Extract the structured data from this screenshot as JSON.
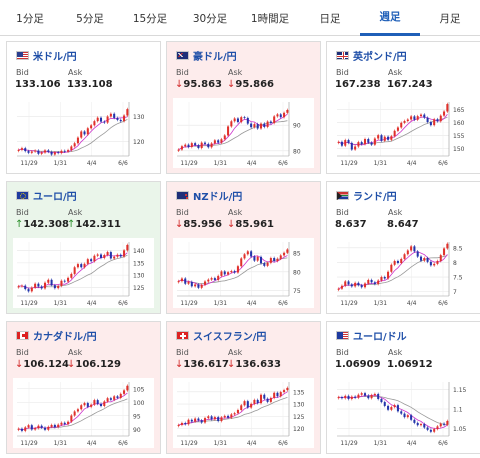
{
  "tabs": [
    {
      "label": "1分足",
      "active": false
    },
    {
      "label": "5分足",
      "active": false
    },
    {
      "label": "15分足",
      "active": false
    },
    {
      "label": "30分足",
      "active": false
    },
    {
      "label": "1時間足",
      "active": false
    },
    {
      "label": "日足",
      "active": false
    },
    {
      "label": "週足",
      "active": true
    },
    {
      "label": "月足",
      "active": false
    }
  ],
  "colors": {
    "down_arrow": "#d22b2b",
    "up_arrow": "#2a8f2a",
    "bull": "#e0302a",
    "bear": "#2233aa",
    "ma_short": "#cc33cc",
    "ma_long": "#999999",
    "title": "#1f4fa8"
  },
  "cards": [
    {
      "pair": "米ドル/円",
      "flag": "us-flag",
      "state": "none",
      "bid_label": "Bid",
      "ask_label": "Ask",
      "bid": "133.106",
      "ask": "133.108",
      "bid_arrow": "",
      "ask_arrow": "",
      "chart_data": {
        "type": "candlestick",
        "x_ticks": [
          "11/29",
          "1/31",
          "4/4",
          "6/6"
        ],
        "y_ticks": [
          "120",
          "130"
        ],
        "ylim": [
          114,
          136
        ],
        "closes": [
          116.5,
          117.2,
          116,
          115.3,
          115.8,
          116.2,
          114.9,
          115.4,
          116.3,
          115.7,
          114.6,
          115.5,
          115.2,
          116.1,
          115.8,
          116.4,
          117.9,
          119.2,
          121.5,
          124,
          122.8,
          125.3,
          126.5,
          128.2,
          129.6,
          128,
          127.6,
          130.1,
          131.2,
          129.5,
          128.7,
          128.2,
          130.5,
          133.1
        ]
      }
    },
    {
      "pair": "豪ドル/円",
      "flag": "au-flag",
      "state": "down",
      "bid_label": "Bid",
      "ask_label": "Ask",
      "bid": "95.863",
      "ask": "95.866",
      "bid_arrow": "↓",
      "ask_arrow": "↓",
      "chart_data": {
        "type": "candlestick",
        "x_ticks": [
          "11/29",
          "1/31",
          "4/4",
          "6/6"
        ],
        "y_ticks": [
          "80",
          "90"
        ],
        "ylim": [
          78,
          99
        ],
        "closes": [
          80.5,
          81.8,
          82.4,
          81.5,
          83,
          82.2,
          81.1,
          83.2,
          82.7,
          81.4,
          82.9,
          84.1,
          83.2,
          84.5,
          86,
          89.5,
          91.5,
          92.6,
          91.2,
          93.1,
          92.8,
          90.6,
          89.2,
          90.4,
          88.7,
          90.6,
          89.3,
          91.4,
          90.8,
          93.4,
          94.2,
          93.1,
          94.8,
          95.9
        ]
      }
    },
    {
      "pair": "英ポンド/円",
      "flag": "uk-flag",
      "state": "none",
      "bid_label": "Bid",
      "ask_label": "Ask",
      "bid": "167.238",
      "ask": "167.243",
      "bid_arrow": "",
      "ask_arrow": "",
      "chart_data": {
        "type": "candlestick",
        "x_ticks": [
          "11/29",
          "1/31",
          "4/4",
          "6/6"
        ],
        "y_ticks": [
          "150",
          "155",
          "160",
          "165"
        ],
        "ylim": [
          147,
          168
        ],
        "closes": [
          152.5,
          151,
          153.2,
          152.1,
          149.5,
          150.7,
          152.4,
          151.6,
          153.6,
          152.2,
          151.4,
          153.8,
          155.1,
          152.9,
          154.5,
          153.3,
          154.7,
          156.8,
          158.1,
          159.9,
          160.6,
          161.2,
          162.4,
          161.1,
          162.5,
          163.1,
          161.9,
          160.2,
          159,
          161.3,
          160.5,
          162.7,
          164.3,
          167.2
        ]
      }
    },
    {
      "pair": "ユーロ/円",
      "flag": "eu-flag",
      "state": "up",
      "bid_label": "Bid",
      "ask_label": "Ask",
      "bid": "142.308",
      "ask": "142.311",
      "bid_arrow": "↑",
      "ask_arrow": "↑",
      "chart_data": {
        "type": "candlestick",
        "x_ticks": [
          "11/29",
          "1/31",
          "4/4",
          "6/6"
        ],
        "y_ticks": [
          "125",
          "130",
          "135",
          "140"
        ],
        "ylim": [
          121.5,
          143.5
        ],
        "closes": [
          125.5,
          125.7,
          124.3,
          123.4,
          124.9,
          126.5,
          125.4,
          124.6,
          126.9,
          128.1,
          125.9,
          124.7,
          125.6,
          127.7,
          127.4,
          128.9,
          130.5,
          133.2,
          134.5,
          133.2,
          134.6,
          136.5,
          135.7,
          137.9,
          138.4,
          137,
          138.2,
          139.4,
          136.8,
          137.5,
          138.3,
          137.6,
          140.1,
          142.3
        ]
      }
    },
    {
      "pair": "NZドル/円",
      "flag": "nz-flag",
      "state": "down",
      "bid_label": "Bid",
      "ask_label": "Ask",
      "bid": "85.956",
      "ask": "85.961",
      "bid_arrow": "↓",
      "ask_arrow": "↓",
      "chart_data": {
        "type": "candlestick",
        "x_ticks": [
          "11/29",
          "1/31",
          "4/4",
          "6/6"
        ],
        "y_ticks": [
          "75",
          "80",
          "85"
        ],
        "ylim": [
          73.5,
          88
        ],
        "closes": [
          77.5,
          78.2,
          76.8,
          77.3,
          76.1,
          76.6,
          75.7,
          76.5,
          77.4,
          77.9,
          78.3,
          77.8,
          78.9,
          80.1,
          79.3,
          79.9,
          80.2,
          79.8,
          81.5,
          83.6,
          84.7,
          85.5,
          84.1,
          83,
          84,
          82.3,
          81.6,
          82.4,
          83.7,
          82.9,
          83.5,
          84.4,
          85.1,
          86
        ]
      }
    },
    {
      "pair": "ランド/円",
      "flag": "za-flag",
      "state": "none",
      "bid_label": "Bid",
      "ask_label": "Ask",
      "bid": "8.637",
      "ask": "8.647",
      "bid_arrow": "",
      "ask_arrow": "",
      "chart_data": {
        "type": "candlestick",
        "x_ticks": [
          "11/29",
          "1/31",
          "4/4",
          "6/6"
        ],
        "y_ticks": [
          "7",
          "7.5",
          "8",
          "8.5"
        ],
        "ylim": [
          6.85,
          8.7
        ],
        "closes": [
          7.1,
          7.2,
          7.35,
          7.25,
          7.18,
          7.3,
          7.22,
          7.15,
          7.28,
          7.4,
          7.32,
          7.26,
          7.38,
          7.5,
          7.45,
          7.68,
          7.92,
          8.05,
          7.98,
          8.12,
          8.28,
          8.41,
          8.55,
          8.38,
          8.2,
          8.06,
          8.15,
          8.02,
          7.9,
          7.95,
          8.05,
          8.25,
          8.48,
          8.64
        ]
      }
    },
    {
      "pair": "カナダドル/円",
      "flag": "ca-flag",
      "state": "down",
      "bid_label": "Bid",
      "ask_label": "Ask",
      "bid": "106.124",
      "ask": "106.129",
      "bid_arrow": "↓",
      "ask_arrow": "↓",
      "chart_data": {
        "type": "candlestick",
        "x_ticks": [
          "11/29",
          "1/31",
          "4/4",
          "6/6"
        ],
        "y_ticks": [
          "90",
          "95",
          "100",
          "105"
        ],
        "ylim": [
          87.5,
          107.5
        ],
        "closes": [
          90.2,
          89.4,
          90.7,
          91.5,
          89.9,
          90.4,
          91.3,
          90.6,
          89.8,
          90.9,
          91.6,
          90.8,
          91.7,
          92.4,
          91.9,
          92.8,
          95.1,
          96.6,
          97.4,
          98.9,
          99.7,
          98.3,
          99.1,
          100.8,
          99.4,
          98.6,
          100.3,
          101.5,
          100.9,
          102.2,
          101.6,
          103.1,
          104.4,
          106.1
        ]
      }
    },
    {
      "pair": "スイスフラン/円",
      "flag": "ch-flag",
      "state": "down",
      "bid_label": "Bid",
      "ask_label": "Ask",
      "bid": "136.617",
      "ask": "136.633",
      "bid_arrow": "↓",
      "ask_arrow": "↓",
      "chart_data": {
        "type": "candlestick",
        "x_ticks": [
          "11/29",
          "1/31",
          "4/4",
          "6/6"
        ],
        "y_ticks": [
          "120",
          "125",
          "130",
          "135"
        ],
        "ylim": [
          117,
          139
        ],
        "closes": [
          121.5,
          122.3,
          121.8,
          123.6,
          122.9,
          124.1,
          123.4,
          122.5,
          124.3,
          125,
          123.8,
          124.7,
          123.1,
          124.6,
          125.2,
          124.5,
          125.8,
          126.3,
          127.6,
          129.5,
          131.2,
          128.6,
          130.1,
          131.7,
          130.4,
          133.8,
          132.2,
          130.9,
          132.5,
          134.6,
          133.2,
          134.9,
          135.7,
          136.6
        ]
      }
    },
    {
      "pair": "ユーロ/ドル",
      "flag": "euus-flag",
      "state": "none",
      "bid_label": "Bid",
      "ask_label": "Ask",
      "bid": "1.06909",
      "ask": "1.06912",
      "bid_arrow": "",
      "ask_arrow": "",
      "chart_data": {
        "type": "candlestick",
        "x_ticks": [
          "11/29",
          "1/31",
          "4/4",
          "6/6"
        ],
        "y_ticks": [
          "1.05",
          "1.1",
          "1.15"
        ],
        "ylim": [
          1.03,
          1.17
        ],
        "closes": [
          1.131,
          1.128,
          1.134,
          1.126,
          1.132,
          1.129,
          1.137,
          1.141,
          1.135,
          1.128,
          1.136,
          1.139,
          1.126,
          1.118,
          1.108,
          1.098,
          1.105,
          1.11,
          1.094,
          1.088,
          1.079,
          1.084,
          1.072,
          1.064,
          1.058,
          1.061,
          1.052,
          1.046,
          1.041,
          1.048,
          1.055,
          1.062,
          1.059,
          1.069
        ]
      }
    }
  ]
}
